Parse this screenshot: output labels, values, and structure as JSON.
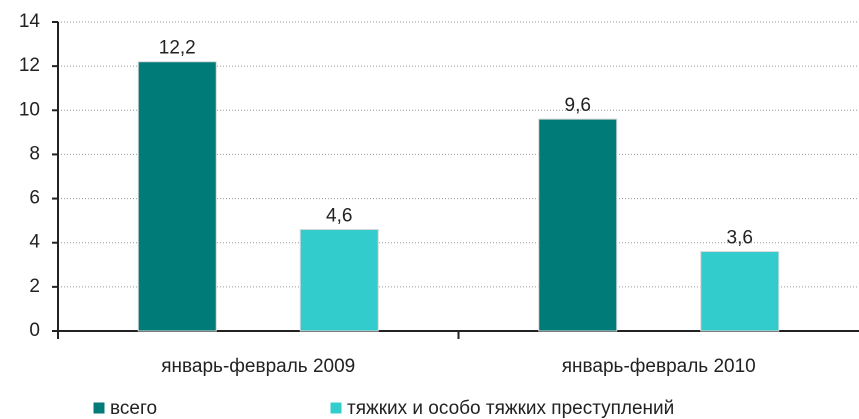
{
  "chart_data": {
    "type": "bar",
    "categories": [
      "январь-февраль 2009",
      "январь-февраль 2010"
    ],
    "series": [
      {
        "name": "всего",
        "color": "#007b78",
        "values": [
          12.2,
          9.6
        ],
        "value_labels": [
          "12,2",
          "9,6"
        ]
      },
      {
        "name": "тяжких и особо тяжких преступлений",
        "color": "#33cccc",
        "values": [
          4.6,
          3.6
        ],
        "value_labels": [
          "4,6",
          "3,6"
        ]
      }
    ],
    "ylim": [
      0,
      14
    ],
    "yticks": [
      0,
      2,
      4,
      6,
      8,
      10,
      12,
      14
    ],
    "grid": true
  }
}
